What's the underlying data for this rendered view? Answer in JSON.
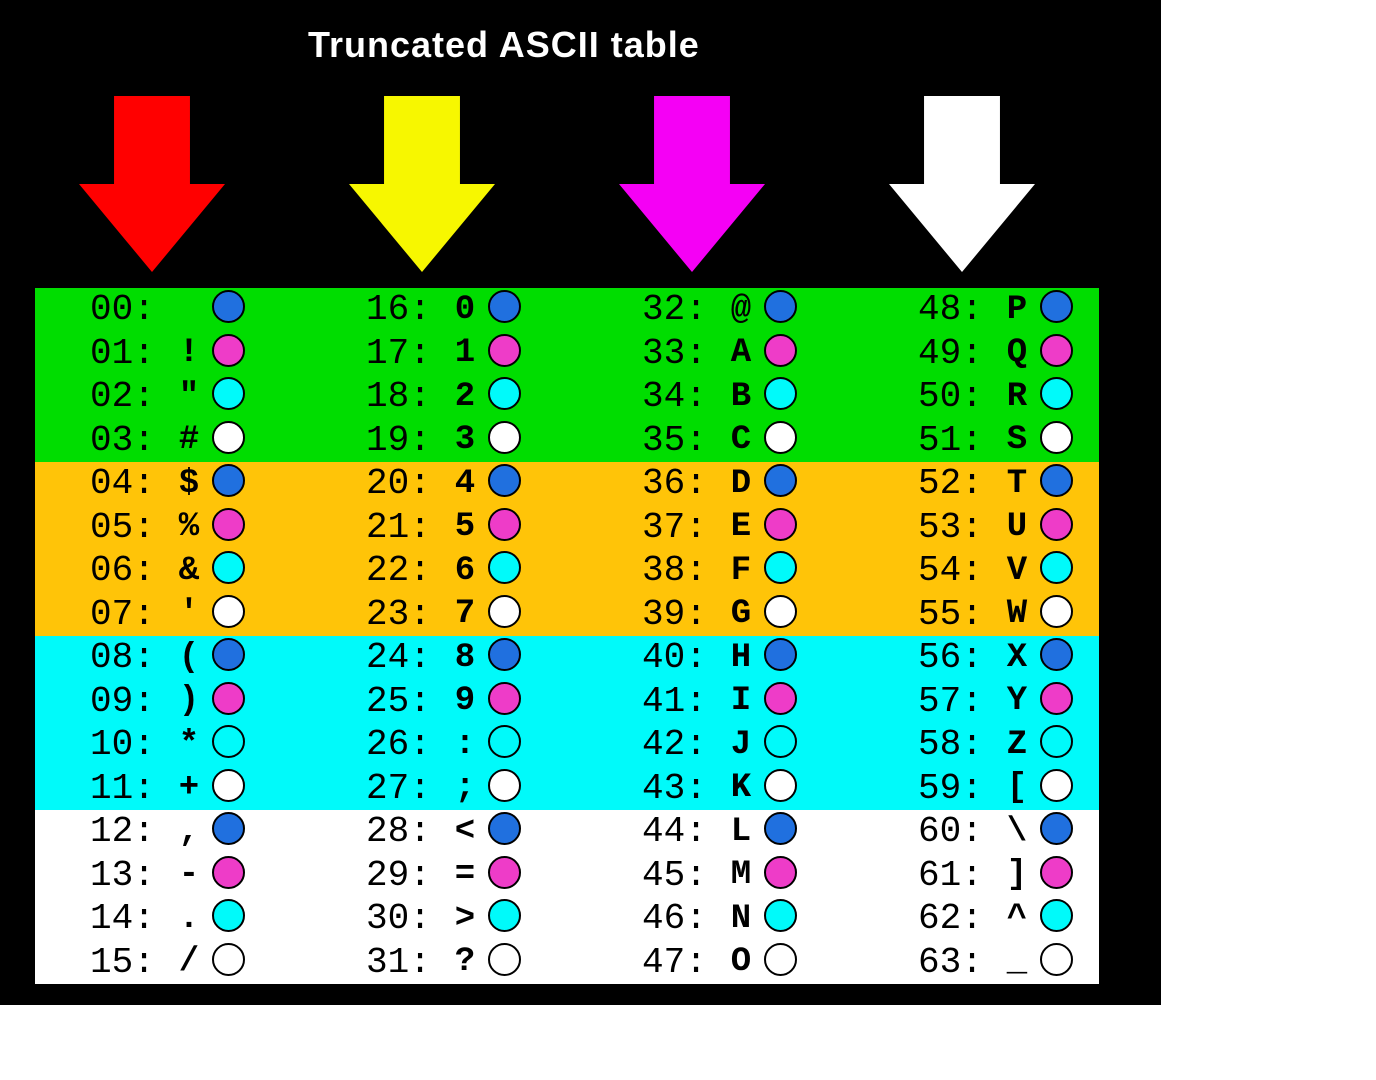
{
  "title": "Truncated ASCII table",
  "background_color": "#000000",
  "page_color": "#ffffff",
  "arrows": [
    {
      "name": "red-arrow",
      "color": "#FF0000"
    },
    {
      "name": "yellow-arrow",
      "color": "#F7F700"
    },
    {
      "name": "magenta-arrow",
      "color": "#F500F5"
    },
    {
      "name": "white-arrow",
      "color": "#FFFFFF"
    }
  ],
  "table": {
    "bands": [
      {
        "name": "band-green",
        "color": "#00DD00"
      },
      {
        "name": "band-orange",
        "color": "#FFC408"
      },
      {
        "name": "band-cyan",
        "color": "#00FAFA"
      },
      {
        "name": "band-white",
        "color": "#FFFFFF"
      }
    ],
    "dot_colors": {
      "blue": "#2070DF",
      "magenta": "#EE3CC8",
      "cyan": "#00FAFA",
      "white": "#FFFFFF"
    },
    "columns": [
      {
        "entries": [
          {
            "label": "00:",
            "char": " ",
            "dot": "blue"
          },
          {
            "label": "01:",
            "char": "!",
            "dot": "magenta"
          },
          {
            "label": "02:",
            "char": "\"",
            "dot": "cyan"
          },
          {
            "label": "03:",
            "char": "#",
            "dot": "white"
          },
          {
            "label": "04:",
            "char": "$",
            "dot": "blue"
          },
          {
            "label": "05:",
            "char": "%",
            "dot": "magenta"
          },
          {
            "label": "06:",
            "char": "&",
            "dot": "cyan"
          },
          {
            "label": "07:",
            "char": "'",
            "dot": "white"
          },
          {
            "label": "08:",
            "char": "(",
            "dot": "blue"
          },
          {
            "label": "09:",
            "char": ")",
            "dot": "magenta"
          },
          {
            "label": "10:",
            "char": "*",
            "dot": "cyan"
          },
          {
            "label": "11:",
            "char": "+",
            "dot": "white"
          },
          {
            "label": "12:",
            "char": ",",
            "dot": "blue"
          },
          {
            "label": "13:",
            "char": "-",
            "dot": "magenta"
          },
          {
            "label": "14:",
            "char": ".",
            "dot": "cyan"
          },
          {
            "label": "15:",
            "char": "/",
            "dot": "white"
          }
        ]
      },
      {
        "entries": [
          {
            "label": "16:",
            "char": "0",
            "dot": "blue"
          },
          {
            "label": "17:",
            "char": "1",
            "dot": "magenta"
          },
          {
            "label": "18:",
            "char": "2",
            "dot": "cyan"
          },
          {
            "label": "19:",
            "char": "3",
            "dot": "white"
          },
          {
            "label": "20:",
            "char": "4",
            "dot": "blue"
          },
          {
            "label": "21:",
            "char": "5",
            "dot": "magenta"
          },
          {
            "label": "22:",
            "char": "6",
            "dot": "cyan"
          },
          {
            "label": "23:",
            "char": "7",
            "dot": "white"
          },
          {
            "label": "24:",
            "char": "8",
            "dot": "blue"
          },
          {
            "label": "25:",
            "char": "9",
            "dot": "magenta"
          },
          {
            "label": "26:",
            "char": ":",
            "dot": "cyan"
          },
          {
            "label": "27:",
            "char": ";",
            "dot": "white"
          },
          {
            "label": "28:",
            "char": "<",
            "dot": "blue"
          },
          {
            "label": "29:",
            "char": "=",
            "dot": "magenta"
          },
          {
            "label": "30:",
            "char": ">",
            "dot": "cyan"
          },
          {
            "label": "31:",
            "char": "?",
            "dot": "white"
          }
        ]
      },
      {
        "entries": [
          {
            "label": "32:",
            "char": "@",
            "dot": "blue"
          },
          {
            "label": "33:",
            "char": "A",
            "dot": "magenta"
          },
          {
            "label": "34:",
            "char": "B",
            "dot": "cyan"
          },
          {
            "label": "35:",
            "char": "C",
            "dot": "white"
          },
          {
            "label": "36:",
            "char": "D",
            "dot": "blue"
          },
          {
            "label": "37:",
            "char": "E",
            "dot": "magenta"
          },
          {
            "label": "38:",
            "char": "F",
            "dot": "cyan"
          },
          {
            "label": "39:",
            "char": "G",
            "dot": "white"
          },
          {
            "label": "40:",
            "char": "H",
            "dot": "blue"
          },
          {
            "label": "41:",
            "char": "I",
            "dot": "magenta"
          },
          {
            "label": "42:",
            "char": "J",
            "dot": "cyan"
          },
          {
            "label": "43:",
            "char": "K",
            "dot": "white"
          },
          {
            "label": "44:",
            "char": "L",
            "dot": "blue"
          },
          {
            "label": "45:",
            "char": "M",
            "dot": "magenta"
          },
          {
            "label": "46:",
            "char": "N",
            "dot": "cyan"
          },
          {
            "label": "47:",
            "char": "O",
            "dot": "white"
          }
        ]
      },
      {
        "entries": [
          {
            "label": "48:",
            "char": "P",
            "dot": "blue"
          },
          {
            "label": "49:",
            "char": "Q",
            "dot": "magenta"
          },
          {
            "label": "50:",
            "char": "R",
            "dot": "cyan"
          },
          {
            "label": "51:",
            "char": "S",
            "dot": "white"
          },
          {
            "label": "52:",
            "char": "T",
            "dot": "blue"
          },
          {
            "label": "53:",
            "char": "U",
            "dot": "magenta"
          },
          {
            "label": "54:",
            "char": "V",
            "dot": "cyan"
          },
          {
            "label": "55:",
            "char": "W",
            "dot": "white"
          },
          {
            "label": "56:",
            "char": "X",
            "dot": "blue"
          },
          {
            "label": "57:",
            "char": "Y",
            "dot": "magenta"
          },
          {
            "label": "58:",
            "char": "Z",
            "dot": "cyan"
          },
          {
            "label": "59:",
            "char": "[",
            "dot": "white"
          },
          {
            "label": "60:",
            "char": "\\",
            "dot": "blue"
          },
          {
            "label": "61:",
            "char": "]",
            "dot": "magenta"
          },
          {
            "label": "62:",
            "char": "^",
            "dot": "cyan"
          },
          {
            "label": "63:",
            "char": "_",
            "dot": "white"
          }
        ]
      }
    ]
  }
}
